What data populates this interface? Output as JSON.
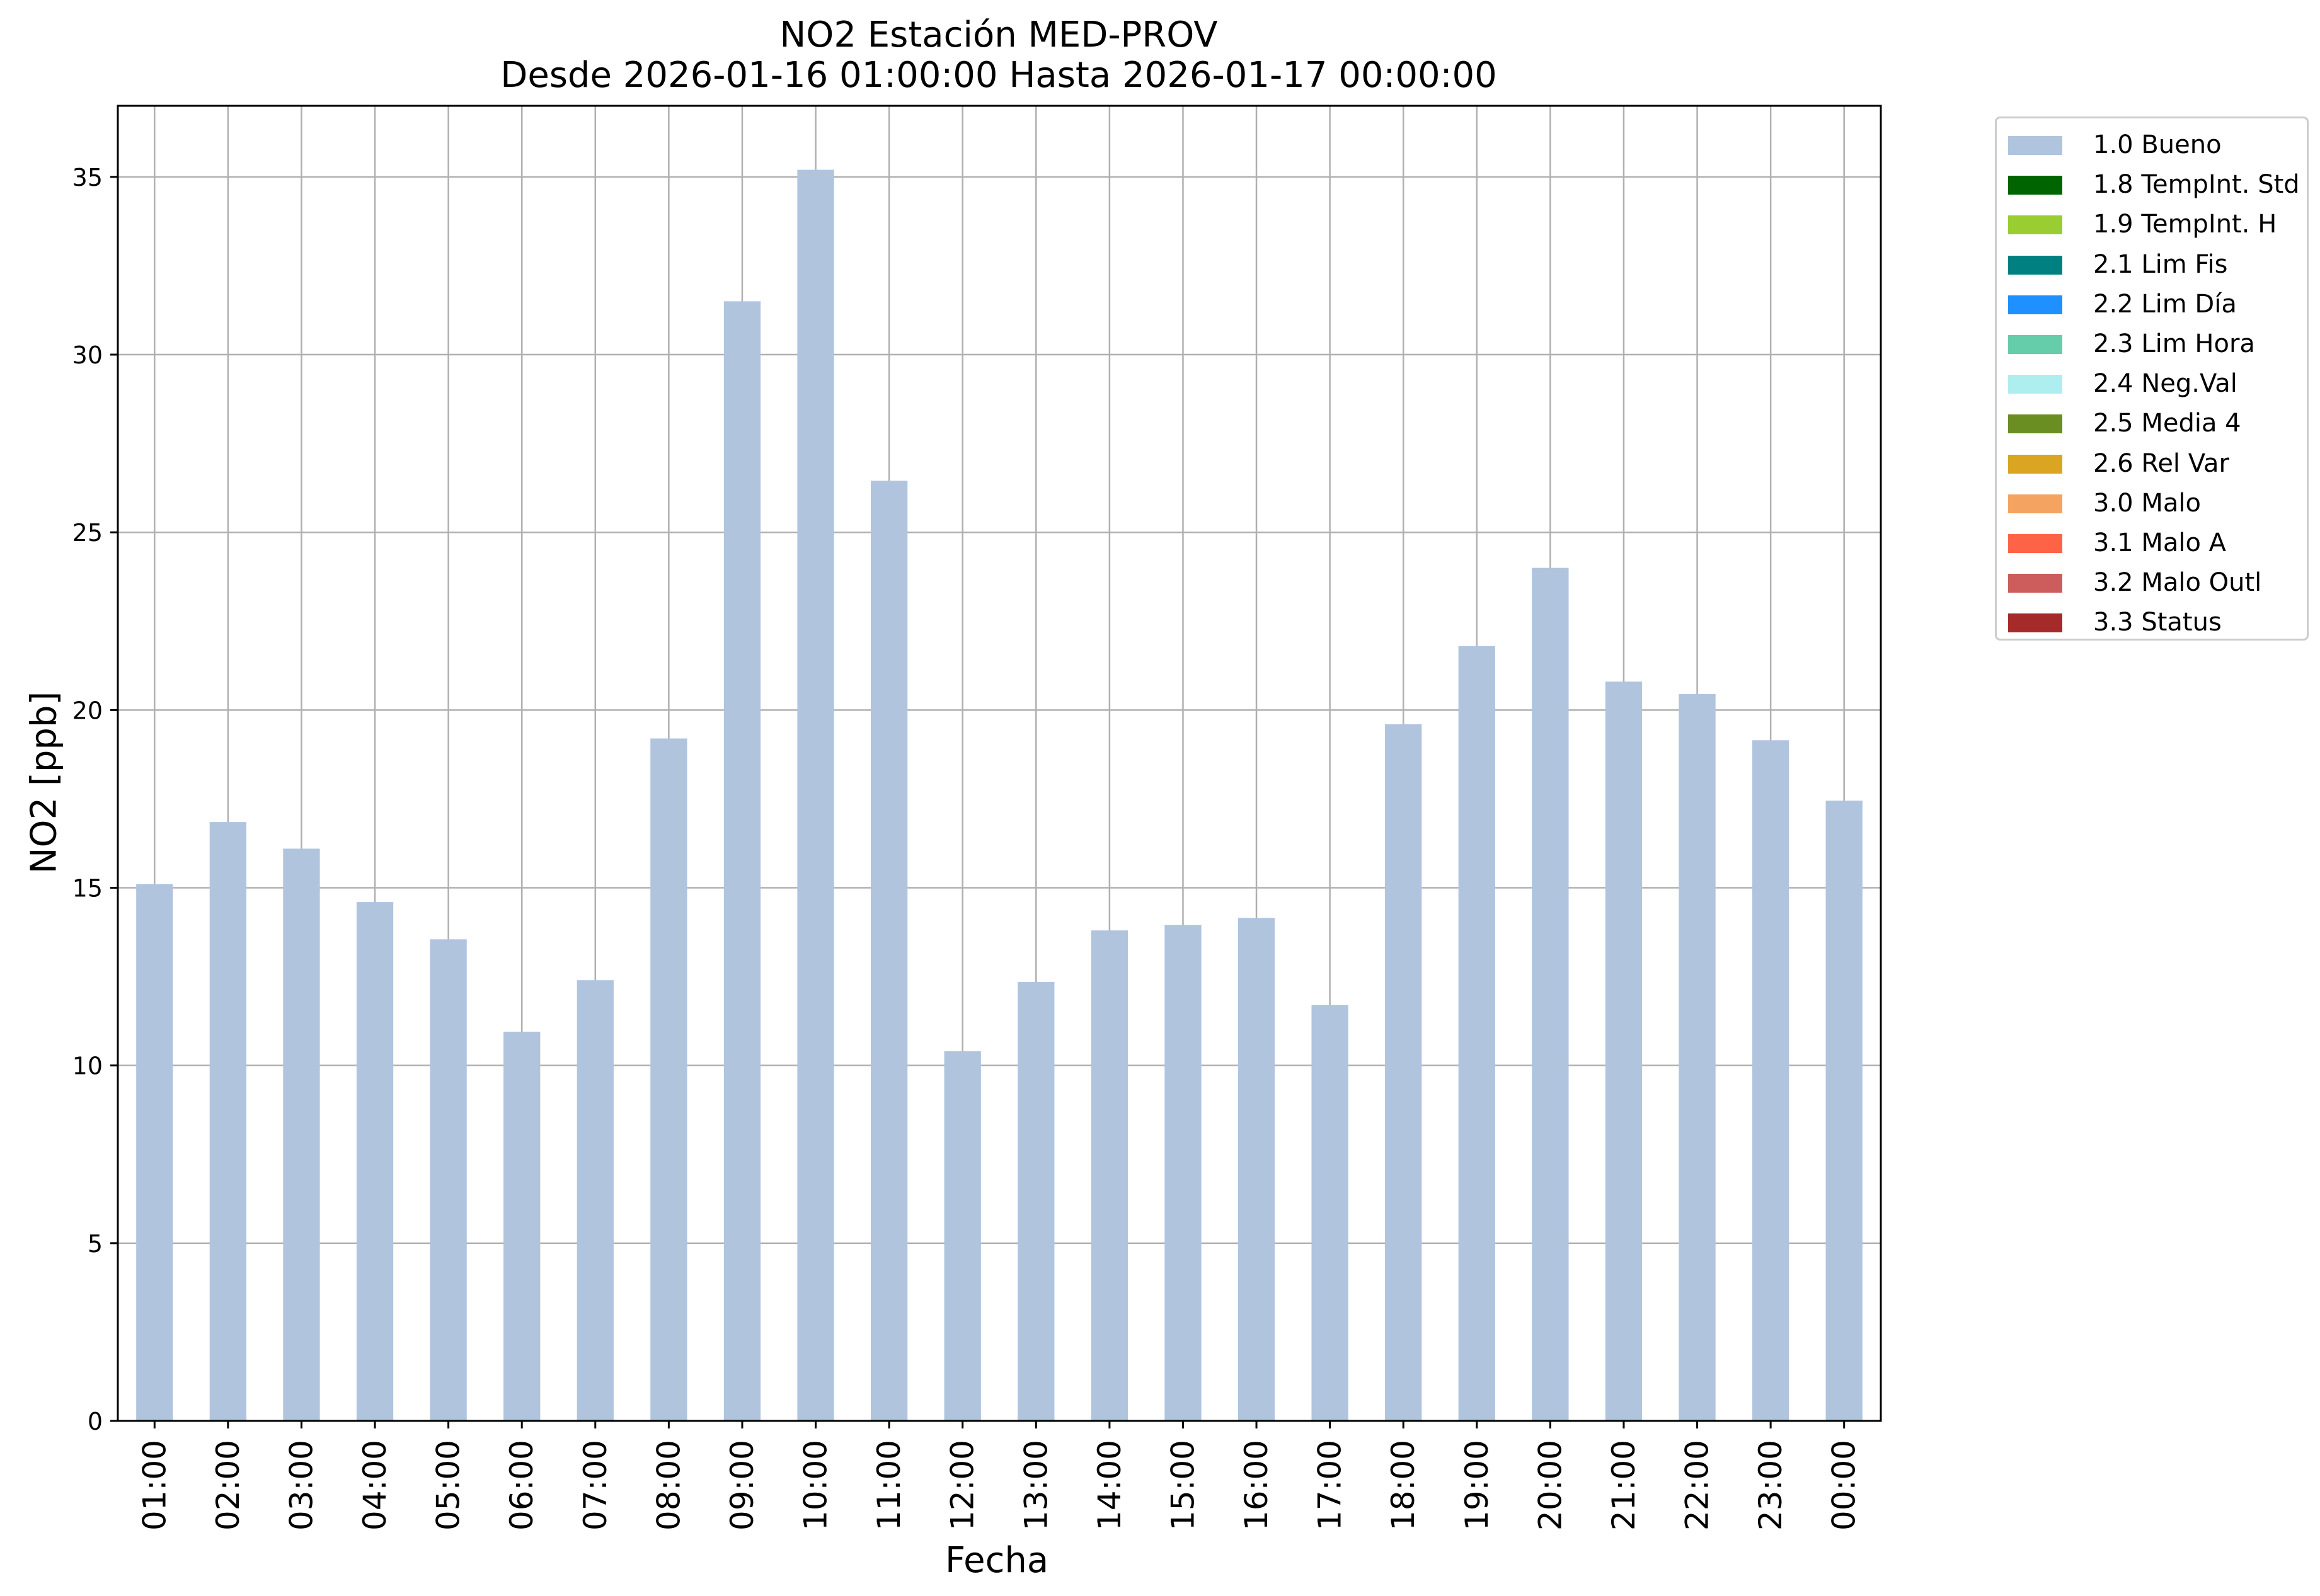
{
  "chart_data": {
    "type": "bar",
    "title": "NO2 Estación MED-PROV",
    "subtitle": "Desde 2026-01-16 01:00:00 Hasta 2026-01-17 00:00:00",
    "xlabel": "Fecha",
    "ylabel": "NO2 [ppb]",
    "ylim": [
      0,
      37
    ],
    "yticks": [
      0,
      5,
      10,
      15,
      20,
      25,
      30,
      35
    ],
    "grid": true,
    "legend_position": "outside-top-right",
    "categories": [
      "01:00",
      "02:00",
      "03:00",
      "04:00",
      "05:00",
      "06:00",
      "07:00",
      "08:00",
      "09:00",
      "10:00",
      "11:00",
      "12:00",
      "13:00",
      "14:00",
      "15:00",
      "16:00",
      "17:00",
      "18:00",
      "19:00",
      "20:00",
      "21:00",
      "22:00",
      "23:00",
      "00:00"
    ],
    "series": [
      {
        "name": "1.0 Bueno",
        "color": "#b0c4de",
        "values": [
          15.1,
          16.85,
          16.1,
          14.6,
          13.55,
          10.95,
          12.4,
          19.2,
          31.5,
          35.2,
          26.45,
          10.4,
          12.35,
          13.8,
          13.95,
          14.15,
          11.7,
          19.6,
          21.8,
          24.0,
          20.8,
          20.45,
          19.15,
          17.45
        ]
      }
    ],
    "legend": [
      {
        "label": "1.0 Bueno",
        "color": "#b0c4de"
      },
      {
        "label": "1.8 TempInt. Std",
        "color": "#006400"
      },
      {
        "label": "1.9 TempInt. H",
        "color": "#9acd32"
      },
      {
        "label": "2.1 Lim Fis",
        "color": "#008080"
      },
      {
        "label": "2.2 Lim Día",
        "color": "#1e90ff"
      },
      {
        "label": "2.3 Lim Hora",
        "color": "#66cdaa"
      },
      {
        "label": "2.4 Neg.Val",
        "color": "#afeeee"
      },
      {
        "label": "2.5 Media 4",
        "color": "#6b8e23"
      },
      {
        "label": "2.6 Rel Var",
        "color": "#daa520"
      },
      {
        "label": "3.0 Malo",
        "color": "#f4a460"
      },
      {
        "label": "3.1 Malo A",
        "color": "#ff6347"
      },
      {
        "label": "3.2 Malo Outl",
        "color": "#cd5c5c"
      },
      {
        "label": "3.3 Status",
        "color": "#a52a2a"
      }
    ]
  }
}
